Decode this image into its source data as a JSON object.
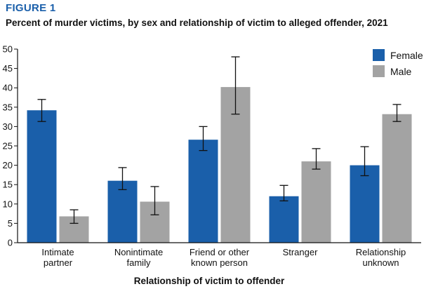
{
  "figure_label": "FIGURE 1",
  "chart_data": {
    "type": "bar",
    "title": "Percent of murder victims, by sex and relationship of victim to alleged offender, 2021",
    "xlabel": "Relationship of victim to offender",
    "ylabel": "",
    "ylim": [
      0,
      50
    ],
    "yticks": [
      0,
      5,
      10,
      15,
      20,
      25,
      30,
      35,
      40,
      45,
      50
    ],
    "grid": false,
    "legend_position": "top-right",
    "categories": [
      [
        "Intimate",
        "partner"
      ],
      [
        "Nonintimate",
        "family"
      ],
      [
        "Friend or other",
        "known person"
      ],
      [
        "Stranger"
      ],
      [
        "Relationship",
        "unknown"
      ]
    ],
    "series": [
      {
        "name": "Female",
        "color": "#1a5faa",
        "values": [
          34.2,
          16.0,
          26.6,
          12.0,
          20.0
        ],
        "error_low": [
          31.3,
          13.7,
          23.8,
          10.8,
          17.3
        ],
        "error_high": [
          37.0,
          19.4,
          30.0,
          14.8,
          24.8
        ]
      },
      {
        "name": "Male",
        "color": "#a3a3a3",
        "values": [
          6.8,
          10.6,
          40.2,
          21.0,
          33.2
        ],
        "error_low": [
          5.0,
          7.2,
          33.2,
          19.0,
          31.3
        ],
        "error_high": [
          8.5,
          14.5,
          48.0,
          24.3,
          35.7
        ]
      }
    ]
  }
}
